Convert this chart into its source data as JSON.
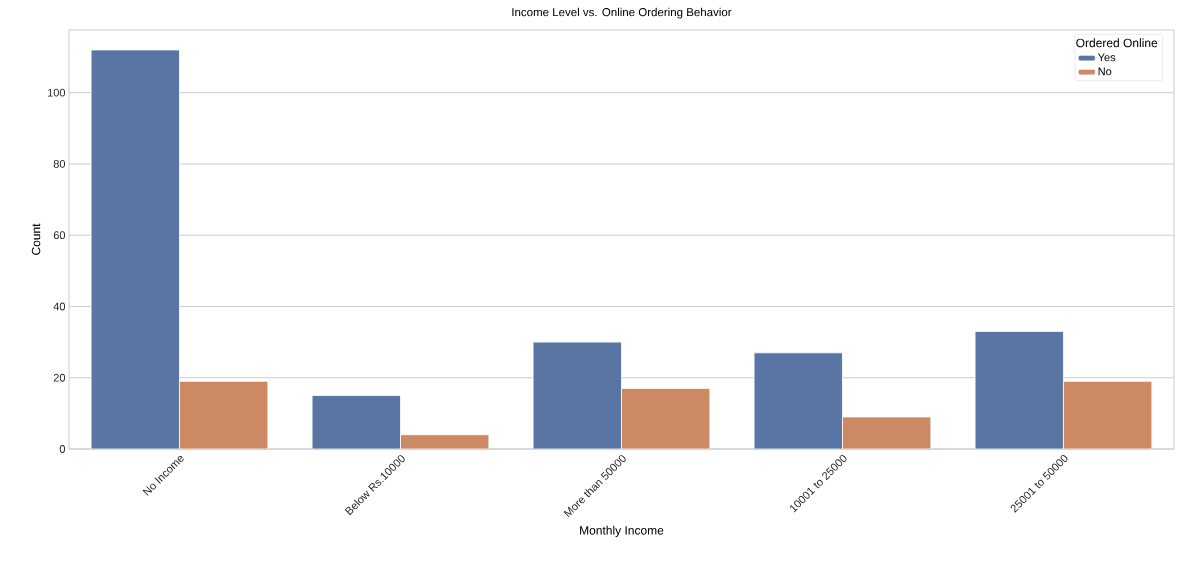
{
  "chart_data": {
    "type": "bar",
    "title": "Income Level vs. Online Ordering Behavior",
    "xlabel": "Monthly Income",
    "ylabel": "Count",
    "legend_title": "Ordered Online",
    "categories": [
      "No Income",
      "Below Rs.10000",
      "More than 50000",
      "10001 to 25000",
      "25001 to 50000"
    ],
    "series": [
      {
        "name": "Yes",
        "color": "#5875a4",
        "values": [
          112,
          15,
          30,
          27,
          33
        ]
      },
      {
        "name": "No",
        "color": "#cc8963",
        "values": [
          19,
          4,
          17,
          9,
          19
        ]
      }
    ],
    "ylim": [
      0,
      117.6
    ],
    "yticks": [
      0,
      20,
      40,
      60,
      80,
      100
    ],
    "grid": "y",
    "legend": "top right"
  }
}
